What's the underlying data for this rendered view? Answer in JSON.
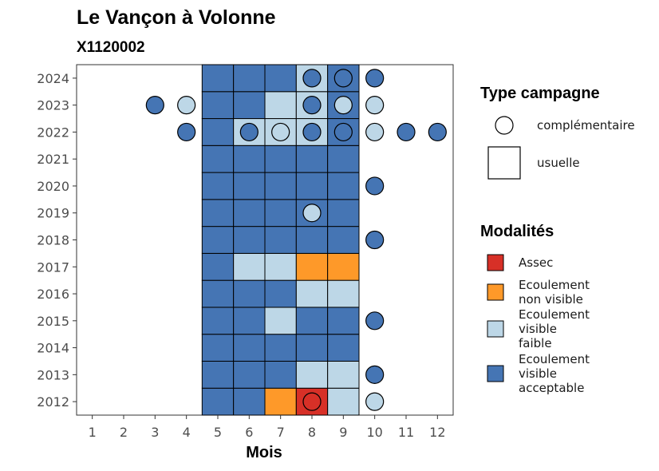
{
  "chart_data": {
    "type": "heatmap",
    "title": "Le Vançon à Volonne",
    "subtitle": "X1120002",
    "xlabel": "Mois",
    "ylabel": "",
    "x_ticks": [
      "1",
      "2",
      "3",
      "4",
      "5",
      "6",
      "7",
      "8",
      "9",
      "10",
      "11",
      "12"
    ],
    "y_ticks": [
      "2012",
      "2013",
      "2014",
      "2015",
      "2016",
      "2017",
      "2018",
      "2019",
      "2020",
      "2021",
      "2022",
      "2023",
      "2024"
    ],
    "xlim": [
      0.5,
      12.5
    ],
    "ylim": [
      2011.5,
      2024.5
    ],
    "grid": false,
    "colors": {
      "Assec": "#D73027",
      "Ecoulement non visible": "#FE9929",
      "Ecoulement visible faible": "#BDD7E7",
      "Ecoulement visible acceptable": "#4575B4"
    },
    "legend": {
      "placement": "right",
      "type_title": "Type campagne",
      "type_entries": [
        {
          "shape": "circle",
          "label": "complémentaire"
        },
        {
          "shape": "square",
          "label": "usuelle"
        }
      ],
      "modalites_title": "Modalités",
      "modalites_entries": [
        {
          "key": "Assec",
          "lines": [
            "Assec"
          ]
        },
        {
          "key": "Ecoulement non visible",
          "lines": [
            "Ecoulement",
            "non visible"
          ]
        },
        {
          "key": "Ecoulement visible faible",
          "lines": [
            "Ecoulement",
            "visible",
            "faible"
          ]
        },
        {
          "key": "Ecoulement visible acceptable",
          "lines": [
            "Ecoulement",
            "visible",
            "acceptable"
          ]
        }
      ]
    },
    "tiles": [
      {
        "year": 2012,
        "month": 5,
        "m": "Ecoulement visible acceptable"
      },
      {
        "year": 2012,
        "month": 6,
        "m": "Ecoulement visible acceptable"
      },
      {
        "year": 2012,
        "month": 7,
        "m": "Ecoulement non visible"
      },
      {
        "year": 2012,
        "month": 8,
        "m": "Assec"
      },
      {
        "year": 2012,
        "month": 9,
        "m": "Ecoulement visible faible"
      },
      {
        "year": 2013,
        "month": 5,
        "m": "Ecoulement visible acceptable"
      },
      {
        "year": 2013,
        "month": 6,
        "m": "Ecoulement visible acceptable"
      },
      {
        "year": 2013,
        "month": 7,
        "m": "Ecoulement visible acceptable"
      },
      {
        "year": 2013,
        "month": 8,
        "m": "Ecoulement visible faible"
      },
      {
        "year": 2013,
        "month": 9,
        "m": "Ecoulement visible faible"
      },
      {
        "year": 2014,
        "month": 5,
        "m": "Ecoulement visible acceptable"
      },
      {
        "year": 2014,
        "month": 6,
        "m": "Ecoulement visible acceptable"
      },
      {
        "year": 2014,
        "month": 7,
        "m": "Ecoulement visible acceptable"
      },
      {
        "year": 2014,
        "month": 8,
        "m": "Ecoulement visible acceptable"
      },
      {
        "year": 2014,
        "month": 9,
        "m": "Ecoulement visible acceptable"
      },
      {
        "year": 2015,
        "month": 5,
        "m": "Ecoulement visible acceptable"
      },
      {
        "year": 2015,
        "month": 6,
        "m": "Ecoulement visible acceptable"
      },
      {
        "year": 2015,
        "month": 7,
        "m": "Ecoulement visible faible"
      },
      {
        "year": 2015,
        "month": 8,
        "m": "Ecoulement visible acceptable"
      },
      {
        "year": 2015,
        "month": 9,
        "m": "Ecoulement visible acceptable"
      },
      {
        "year": 2016,
        "month": 5,
        "m": "Ecoulement visible acceptable"
      },
      {
        "year": 2016,
        "month": 6,
        "m": "Ecoulement visible acceptable"
      },
      {
        "year": 2016,
        "month": 7,
        "m": "Ecoulement visible acceptable"
      },
      {
        "year": 2016,
        "month": 8,
        "m": "Ecoulement visible faible"
      },
      {
        "year": 2016,
        "month": 9,
        "m": "Ecoulement visible faible"
      },
      {
        "year": 2017,
        "month": 5,
        "m": "Ecoulement visible acceptable"
      },
      {
        "year": 2017,
        "month": 6,
        "m": "Ecoulement visible faible"
      },
      {
        "year": 2017,
        "month": 7,
        "m": "Ecoulement visible faible"
      },
      {
        "year": 2017,
        "month": 8,
        "m": "Ecoulement non visible"
      },
      {
        "year": 2017,
        "month": 9,
        "m": "Ecoulement non visible"
      },
      {
        "year": 2018,
        "month": 5,
        "m": "Ecoulement visible acceptable"
      },
      {
        "year": 2018,
        "month": 6,
        "m": "Ecoulement visible acceptable"
      },
      {
        "year": 2018,
        "month": 7,
        "m": "Ecoulement visible acceptable"
      },
      {
        "year": 2018,
        "month": 8,
        "m": "Ecoulement visible acceptable"
      },
      {
        "year": 2018,
        "month": 9,
        "m": "Ecoulement visible acceptable"
      },
      {
        "year": 2019,
        "month": 5,
        "m": "Ecoulement visible acceptable"
      },
      {
        "year": 2019,
        "month": 6,
        "m": "Ecoulement visible acceptable"
      },
      {
        "year": 2019,
        "month": 7,
        "m": "Ecoulement visible acceptable"
      },
      {
        "year": 2019,
        "month": 8,
        "m": "Ecoulement visible acceptable"
      },
      {
        "year": 2019,
        "month": 9,
        "m": "Ecoulement visible acceptable"
      },
      {
        "year": 2020,
        "month": 5,
        "m": "Ecoulement visible acceptable"
      },
      {
        "year": 2020,
        "month": 6,
        "m": "Ecoulement visible acceptable"
      },
      {
        "year": 2020,
        "month": 7,
        "m": "Ecoulement visible acceptable"
      },
      {
        "year": 2020,
        "month": 8,
        "m": "Ecoulement visible acceptable"
      },
      {
        "year": 2020,
        "month": 9,
        "m": "Ecoulement visible acceptable"
      },
      {
        "year": 2021,
        "month": 5,
        "m": "Ecoulement visible acceptable"
      },
      {
        "year": 2021,
        "month": 6,
        "m": "Ecoulement visible acceptable"
      },
      {
        "year": 2021,
        "month": 7,
        "m": "Ecoulement visible acceptable"
      },
      {
        "year": 2021,
        "month": 8,
        "m": "Ecoulement visible acceptable"
      },
      {
        "year": 2021,
        "month": 9,
        "m": "Ecoulement visible acceptable"
      },
      {
        "year": 2022,
        "month": 5,
        "m": "Ecoulement visible acceptable"
      },
      {
        "year": 2022,
        "month": 6,
        "m": "Ecoulement visible faible"
      },
      {
        "year": 2022,
        "month": 7,
        "m": "Ecoulement visible faible"
      },
      {
        "year": 2022,
        "month": 8,
        "m": "Ecoulement visible faible"
      },
      {
        "year": 2022,
        "month": 9,
        "m": "Ecoulement visible acceptable"
      },
      {
        "year": 2023,
        "month": 5,
        "m": "Ecoulement visible acceptable"
      },
      {
        "year": 2023,
        "month": 6,
        "m": "Ecoulement visible acceptable"
      },
      {
        "year": 2023,
        "month": 7,
        "m": "Ecoulement visible faible"
      },
      {
        "year": 2023,
        "month": 8,
        "m": "Ecoulement visible faible"
      },
      {
        "year": 2023,
        "month": 9,
        "m": "Ecoulement visible acceptable"
      },
      {
        "year": 2024,
        "month": 5,
        "m": "Ecoulement visible acceptable"
      },
      {
        "year": 2024,
        "month": 6,
        "m": "Ecoulement visible acceptable"
      },
      {
        "year": 2024,
        "month": 7,
        "m": "Ecoulement visible acceptable"
      },
      {
        "year": 2024,
        "month": 8,
        "m": "Ecoulement visible faible"
      },
      {
        "year": 2024,
        "month": 9,
        "m": "Ecoulement visible acceptable"
      }
    ],
    "points": [
      {
        "year": 2012,
        "month": 8,
        "m": "Assec"
      },
      {
        "year": 2012,
        "month": 10,
        "m": "Ecoulement visible faible"
      },
      {
        "year": 2013,
        "month": 10,
        "m": "Ecoulement visible acceptable"
      },
      {
        "year": 2015,
        "month": 10,
        "m": "Ecoulement visible acceptable"
      },
      {
        "year": 2018,
        "month": 10,
        "m": "Ecoulement visible acceptable"
      },
      {
        "year": 2019,
        "month": 8,
        "m": "Ecoulement visible faible"
      },
      {
        "year": 2020,
        "month": 10,
        "m": "Ecoulement visible acceptable"
      },
      {
        "year": 2022,
        "month": 4,
        "m": "Ecoulement visible acceptable"
      },
      {
        "year": 2022,
        "month": 6,
        "m": "Ecoulement visible acceptable"
      },
      {
        "year": 2022,
        "month": 7,
        "m": "Ecoulement visible faible"
      },
      {
        "year": 2022,
        "month": 8,
        "m": "Ecoulement visible acceptable"
      },
      {
        "year": 2022,
        "month": 9,
        "m": "Ecoulement visible acceptable"
      },
      {
        "year": 2022,
        "month": 10,
        "m": "Ecoulement visible faible"
      },
      {
        "year": 2022,
        "month": 11,
        "m": "Ecoulement visible acceptable"
      },
      {
        "year": 2022,
        "month": 12,
        "m": "Ecoulement visible acceptable"
      },
      {
        "year": 2023,
        "month": 3,
        "m": "Ecoulement visible acceptable"
      },
      {
        "year": 2023,
        "month": 4,
        "m": "Ecoulement visible faible"
      },
      {
        "year": 2023,
        "month": 8,
        "m": "Ecoulement visible acceptable"
      },
      {
        "year": 2023,
        "month": 9,
        "m": "Ecoulement visible faible"
      },
      {
        "year": 2023,
        "month": 10,
        "m": "Ecoulement visible faible"
      },
      {
        "year": 2024,
        "month": 8,
        "m": "Ecoulement visible acceptable"
      },
      {
        "year": 2024,
        "month": 9,
        "m": "Ecoulement visible acceptable"
      },
      {
        "year": 2024,
        "month": 10,
        "m": "Ecoulement visible acceptable"
      }
    ]
  }
}
